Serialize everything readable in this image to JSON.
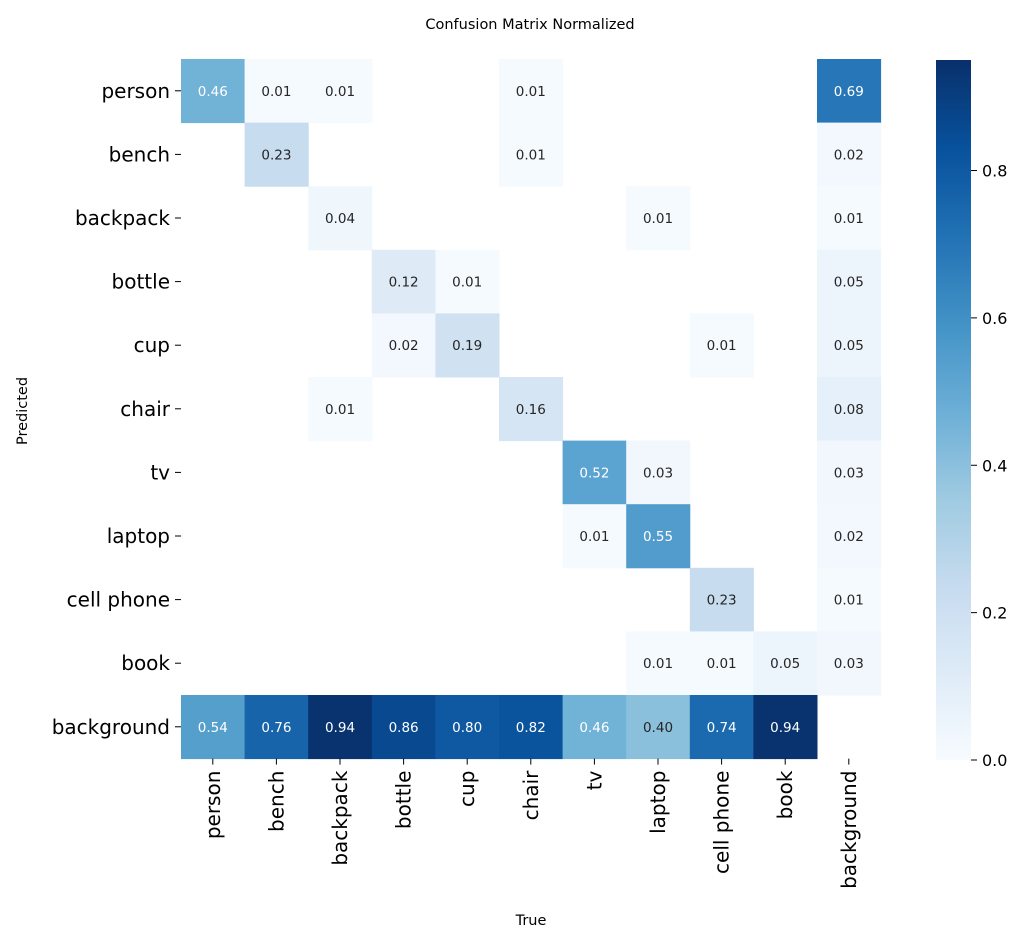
{
  "chart_data": {
    "type": "heatmap",
    "title": "Confusion Matrix Normalized",
    "xlabel": "True",
    "ylabel": "Predicted",
    "x_categories": [
      "person",
      "bench",
      "backpack",
      "bottle",
      "cup",
      "chair",
      "tv",
      "laptop",
      "cell phone",
      "book",
      "background"
    ],
    "y_categories": [
      "person",
      "bench",
      "backpack",
      "bottle",
      "cup",
      "chair",
      "tv",
      "laptop",
      "cell phone",
      "book",
      "background"
    ],
    "values": [
      [
        0.46,
        0.01,
        0.01,
        null,
        null,
        0.01,
        null,
        null,
        null,
        null,
        0.69
      ],
      [
        null,
        0.23,
        null,
        null,
        null,
        0.01,
        null,
        null,
        null,
        null,
        0.02
      ],
      [
        null,
        null,
        0.04,
        null,
        null,
        null,
        null,
        0.01,
        null,
        null,
        0.01
      ],
      [
        null,
        null,
        null,
        0.12,
        0.01,
        null,
        null,
        null,
        null,
        null,
        0.05
      ],
      [
        null,
        null,
        null,
        0.02,
        0.19,
        null,
        null,
        null,
        0.01,
        null,
        0.05
      ],
      [
        null,
        null,
        0.01,
        null,
        null,
        0.16,
        null,
        null,
        null,
        null,
        0.08
      ],
      [
        null,
        null,
        null,
        null,
        null,
        null,
        0.52,
        0.03,
        null,
        null,
        0.03
      ],
      [
        null,
        null,
        null,
        null,
        null,
        null,
        0.01,
        0.55,
        null,
        null,
        0.02
      ],
      [
        null,
        null,
        null,
        null,
        null,
        null,
        null,
        null,
        0.23,
        null,
        0.01
      ],
      [
        null,
        null,
        null,
        null,
        null,
        null,
        null,
        0.01,
        0.01,
        0.05,
        0.03
      ],
      [
        0.54,
        0.76,
        0.94,
        0.86,
        0.8,
        0.82,
        0.46,
        0.4,
        0.74,
        0.94,
        null
      ]
    ],
    "colorbar": {
      "min": 0.0,
      "max": 0.95,
      "ticks": [
        0.0,
        0.2,
        0.4,
        0.6,
        0.8
      ],
      "tick_labels": [
        "0.0",
        "0.2",
        "0.4",
        "0.6",
        "0.8"
      ],
      "colormap": "Blues"
    }
  }
}
